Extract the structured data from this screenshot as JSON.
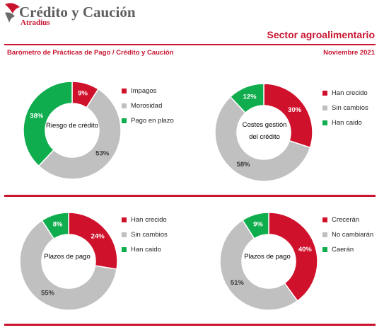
{
  "header": {
    "brand": "Crédito y Caución",
    "brand_sub": "Atradius",
    "sector": "Sector agroalimentario",
    "subtitle": "Barómetro de Prácticas de Pago / Crédito y Caución",
    "date": "Noviembre 2021"
  },
  "colors": {
    "red": "#d0112b",
    "grey": "#c0c0c0",
    "green": "#10ad4e",
    "accent": "#c9142f"
  },
  "chart_data": [
    {
      "type": "pie",
      "title": "Riesgo de crédito",
      "categories": [
        "Impagos",
        "Morosidad",
        "Pago en plazo"
      ],
      "values": [
        9,
        53,
        38
      ],
      "labels": [
        "9%",
        "53%",
        "38%"
      ],
      "colors": [
        "#d0112b",
        "#c0c0c0",
        "#10ad4e"
      ]
    },
    {
      "type": "pie",
      "title": "Costes gestión del crédito",
      "categories": [
        "Han crecido",
        "Sin cambios",
        "Han caido"
      ],
      "values": [
        30,
        58,
        12
      ],
      "labels": [
        "30%",
        "58%",
        "12%"
      ],
      "colors": [
        "#d0112b",
        "#c0c0c0",
        "#10ad4e"
      ]
    },
    {
      "type": "pie",
      "title": "Plazos de pago",
      "categories": [
        "Han crecido",
        "Sin cambios",
        "Han caido"
      ],
      "values": [
        24,
        55,
        8
      ],
      "labels": [
        "24%",
        "55%",
        "8%"
      ],
      "colors": [
        "#d0112b",
        "#c0c0c0",
        "#10ad4e"
      ]
    },
    {
      "type": "pie",
      "title": "Plazos de pago",
      "categories": [
        "Crecerán",
        "No cambiarán",
        "Caerán"
      ],
      "values": [
        40,
        51,
        9
      ],
      "labels": [
        "40%",
        "51%",
        "9%"
      ],
      "colors": [
        "#d0112b",
        "#c0c0c0",
        "#10ad4e"
      ]
    }
  ]
}
